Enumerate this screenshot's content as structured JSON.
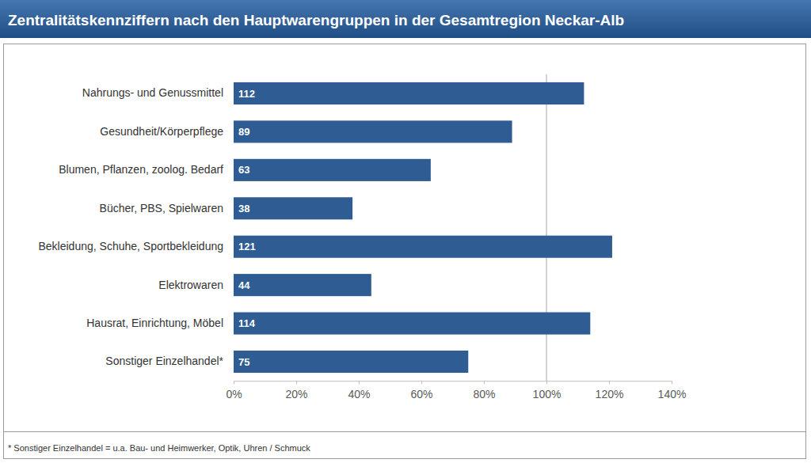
{
  "chart_data": {
    "type": "bar",
    "title": "Zentralitätskennziffern nach den Hauptwarengruppen in der Gesamtregion Neckar-Alb",
    "categories": [
      "Nahrungs- und Genussmittel",
      "Gesundheit/Körperpflege",
      "Blumen, Pflanzen, zoolog. Bedarf",
      "Bücher, PBS, Spielwaren",
      "Bekleidung, Schuhe, Sportbekleidung",
      "Elektrowaren",
      "Hausrat, Einrichtung, Möbel",
      "Sonstiger Einzelhandel*"
    ],
    "values": [
      112,
      89,
      63,
      38,
      121,
      44,
      114,
      75
    ],
    "color": "#2e5c93",
    "orientation": "horizontal",
    "data_labels": true,
    "grid": false,
    "xlim": [
      0,
      140
    ],
    "xticks": [
      {
        "value": 0,
        "label": "0%"
      },
      {
        "value": 20,
        "label": "20%"
      },
      {
        "value": 40,
        "label": "40%"
      },
      {
        "value": 60,
        "label": "60%"
      },
      {
        "value": 80,
        "label": "80%"
      },
      {
        "value": 100,
        "label": "100%"
      },
      {
        "value": 120,
        "label": "120%"
      },
      {
        "value": 140,
        "label": "140%"
      }
    ],
    "reference_line": 100,
    "footnote": "* Sonstiger Einzelhandel = u.a. Bau- und Heimwerker, Optik, Uhren / Schmuck"
  }
}
